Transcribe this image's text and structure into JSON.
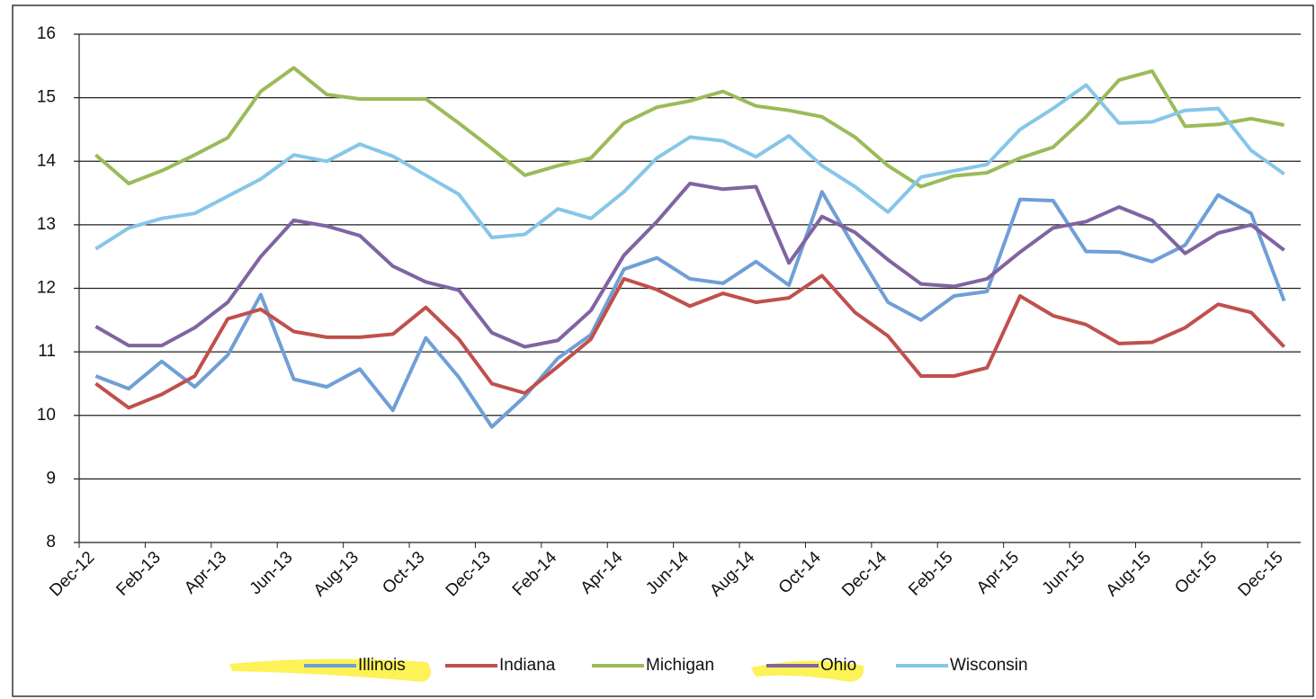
{
  "chart_data": {
    "type": "line",
    "categories": [
      "Dec-12",
      null,
      "Feb-13",
      null,
      "Apr-13",
      null,
      "Jun-13",
      null,
      "Aug-13",
      null,
      "Oct-13",
      null,
      "Dec-13",
      null,
      "Feb-14",
      null,
      "Apr-14",
      null,
      "Jun-14",
      null,
      "Aug-14",
      null,
      "Oct-14",
      null,
      "Dec-14",
      null,
      "Feb-15",
      null,
      "Apr-15",
      null,
      "Jun-15",
      null,
      "Aug-15",
      null,
      "Oct-15",
      null,
      "Dec-15"
    ],
    "series": [
      {
        "name": "Illinois",
        "color": "#6f9fd6",
        "values": [
          10.62,
          10.42,
          10.85,
          10.45,
          10.95,
          11.9,
          10.57,
          10.45,
          10.73,
          10.08,
          11.22,
          10.6,
          9.82,
          10.3,
          10.9,
          11.27,
          12.3,
          12.48,
          12.15,
          12.08,
          12.42,
          12.05,
          13.52,
          12.63,
          11.78,
          11.5,
          11.88,
          11.95,
          13.4,
          13.38,
          12.58,
          12.57,
          12.42,
          12.68,
          13.47,
          13.18,
          11.8
        ]
      },
      {
        "name": "Indiana",
        "color": "#c0504d",
        "values": [
          10.5,
          10.12,
          10.33,
          10.62,
          11.52,
          11.67,
          11.32,
          11.23,
          11.23,
          11.28,
          11.7,
          11.2,
          10.5,
          10.35,
          10.77,
          11.2,
          12.15,
          11.98,
          11.72,
          11.92,
          11.78,
          11.85,
          12.2,
          11.62,
          11.25,
          10.62,
          10.62,
          10.75,
          11.88,
          11.57,
          11.43,
          11.13,
          11.15,
          11.38,
          11.75,
          11.62,
          11.08
        ]
      },
      {
        "name": "Michigan",
        "color": "#9bbb59",
        "values": [
          14.1,
          13.65,
          13.85,
          14.1,
          14.37,
          15.1,
          15.47,
          15.05,
          14.98,
          14.98,
          14.98,
          14.6,
          14.2,
          13.78,
          13.93,
          14.05,
          14.6,
          14.85,
          14.95,
          15.1,
          14.87,
          14.8,
          14.7,
          14.38,
          13.93,
          13.6,
          13.77,
          13.82,
          14.05,
          14.22,
          14.7,
          15.28,
          15.42,
          14.55,
          14.58,
          14.67,
          14.57
        ]
      },
      {
        "name": "Ohio",
        "color": "#8064a2",
        "values": [
          11.4,
          11.1,
          11.1,
          11.38,
          11.78,
          12.5,
          13.07,
          12.98,
          12.83,
          12.35,
          12.1,
          11.97,
          11.3,
          11.08,
          11.18,
          11.65,
          12.52,
          13.05,
          13.65,
          13.56,
          13.6,
          12.4,
          13.13,
          12.88,
          12.45,
          12.07,
          12.03,
          12.15,
          12.57,
          12.95,
          13.05,
          13.28,
          13.07,
          12.55,
          12.87,
          13.0,
          12.6
        ]
      },
      {
        "name": "Wisconsin",
        "color": "#87c6e8",
        "values": [
          12.62,
          12.95,
          13.1,
          13.18,
          13.45,
          13.72,
          14.1,
          14.0,
          14.27,
          14.08,
          13.78,
          13.48,
          12.8,
          12.85,
          13.25,
          13.1,
          13.52,
          14.05,
          14.38,
          14.32,
          14.07,
          14.4,
          13.93,
          13.6,
          13.2,
          13.75,
          13.85,
          13.95,
          14.5,
          14.83,
          15.2,
          14.6,
          14.62,
          14.8,
          14.83,
          14.17,
          13.8
        ]
      }
    ],
    "ylim": [
      8,
      16
    ],
    "yticks": [
      8,
      9,
      10,
      11,
      12,
      13,
      14,
      15,
      16
    ],
    "grid": true,
    "legend": "bottom"
  }
}
